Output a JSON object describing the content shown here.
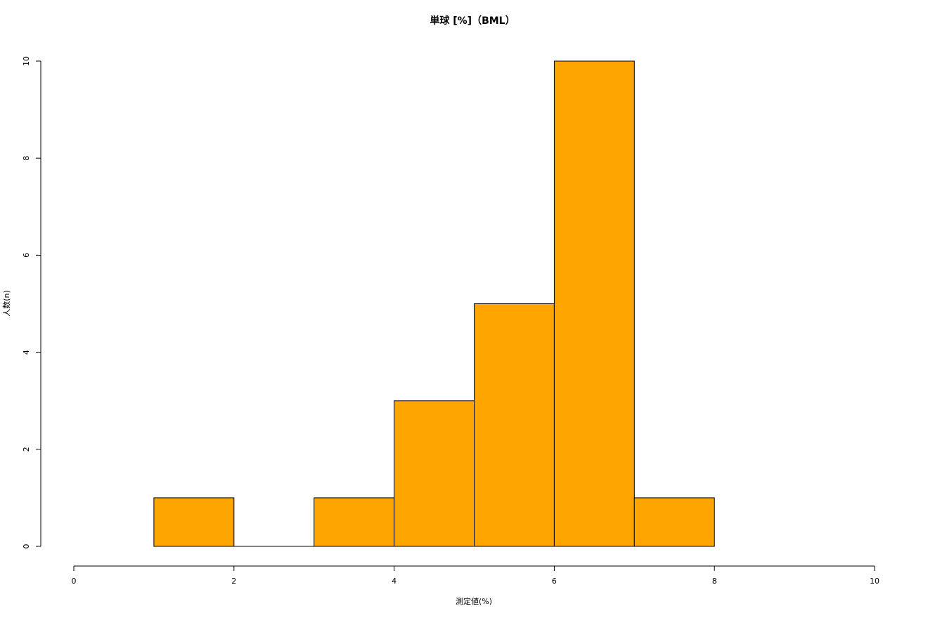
{
  "chart_data": {
    "type": "histogram",
    "title": "単球 [%]（BML）",
    "xlabel": "測定値(%)",
    "ylabel": "人数(n)",
    "bins": [
      1,
      2,
      3,
      4,
      5,
      6,
      7,
      8
    ],
    "values": [
      1,
      0,
      1,
      3,
      5,
      10,
      1
    ],
    "color": "#ffa500",
    "xlim": [
      0,
      10
    ],
    "xticks": [
      0,
      2,
      4,
      6,
      8,
      10
    ],
    "ylim": [
      0,
      10
    ],
    "yticks": [
      0,
      2,
      4,
      6,
      8,
      10
    ]
  }
}
